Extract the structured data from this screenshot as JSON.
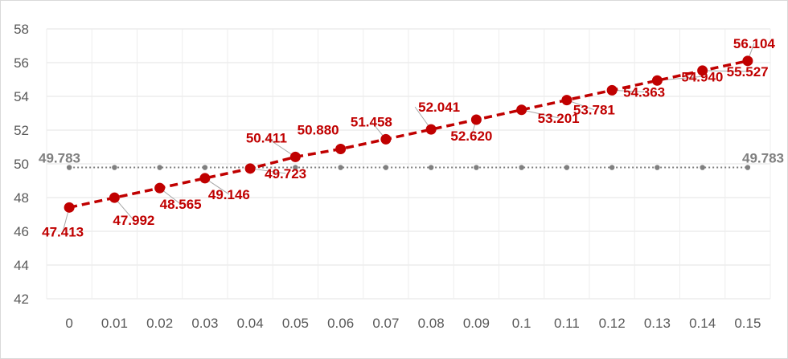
{
  "chart_data": {
    "type": "line",
    "title": "",
    "xlabel": "",
    "ylabel": "",
    "x": [
      "0",
      "0.01",
      "0.02",
      "0.03",
      "0.04",
      "0.05",
      "0.06",
      "0.07",
      "0.08",
      "0.09",
      "0.1",
      "0.11",
      "0.12",
      "0.13",
      "0.14",
      "0.15"
    ],
    "ylim": [
      42,
      58
    ],
    "yticks": [
      "42",
      "44",
      "46",
      "48",
      "50",
      "52",
      "54",
      "56",
      "58"
    ],
    "grid": true,
    "legend": "none",
    "series": [
      {
        "values": [
          47.413,
          47.992,
          48.565,
          49.146,
          49.723,
          50.411,
          50.88,
          51.458,
          52.041,
          52.62,
          53.201,
          53.781,
          54.363,
          54.94,
          55.527,
          56.104
        ],
        "labels": [
          "47.413",
          "47.992",
          "48.565",
          "49.146",
          "49.723",
          "50.411",
          "50.880",
          "51.458",
          "52.041",
          "52.620",
          "53.201",
          "53.781",
          "54.363",
          "54.940",
          "55.527",
          "56.104"
        ],
        "color": "#c00000",
        "line_style": "dashed",
        "marker": "circle"
      },
      {
        "values": [
          49.783,
          49.783,
          49.783,
          49.783,
          49.783,
          49.783,
          49.783,
          49.783,
          49.783,
          49.783,
          49.783,
          49.783,
          49.783,
          49.783,
          49.783,
          49.783
        ],
        "end_labels": [
          "49.783",
          "49.783"
        ],
        "color": "#7f7f7f",
        "line_style": "dotted",
        "marker": "small-circle"
      }
    ]
  }
}
